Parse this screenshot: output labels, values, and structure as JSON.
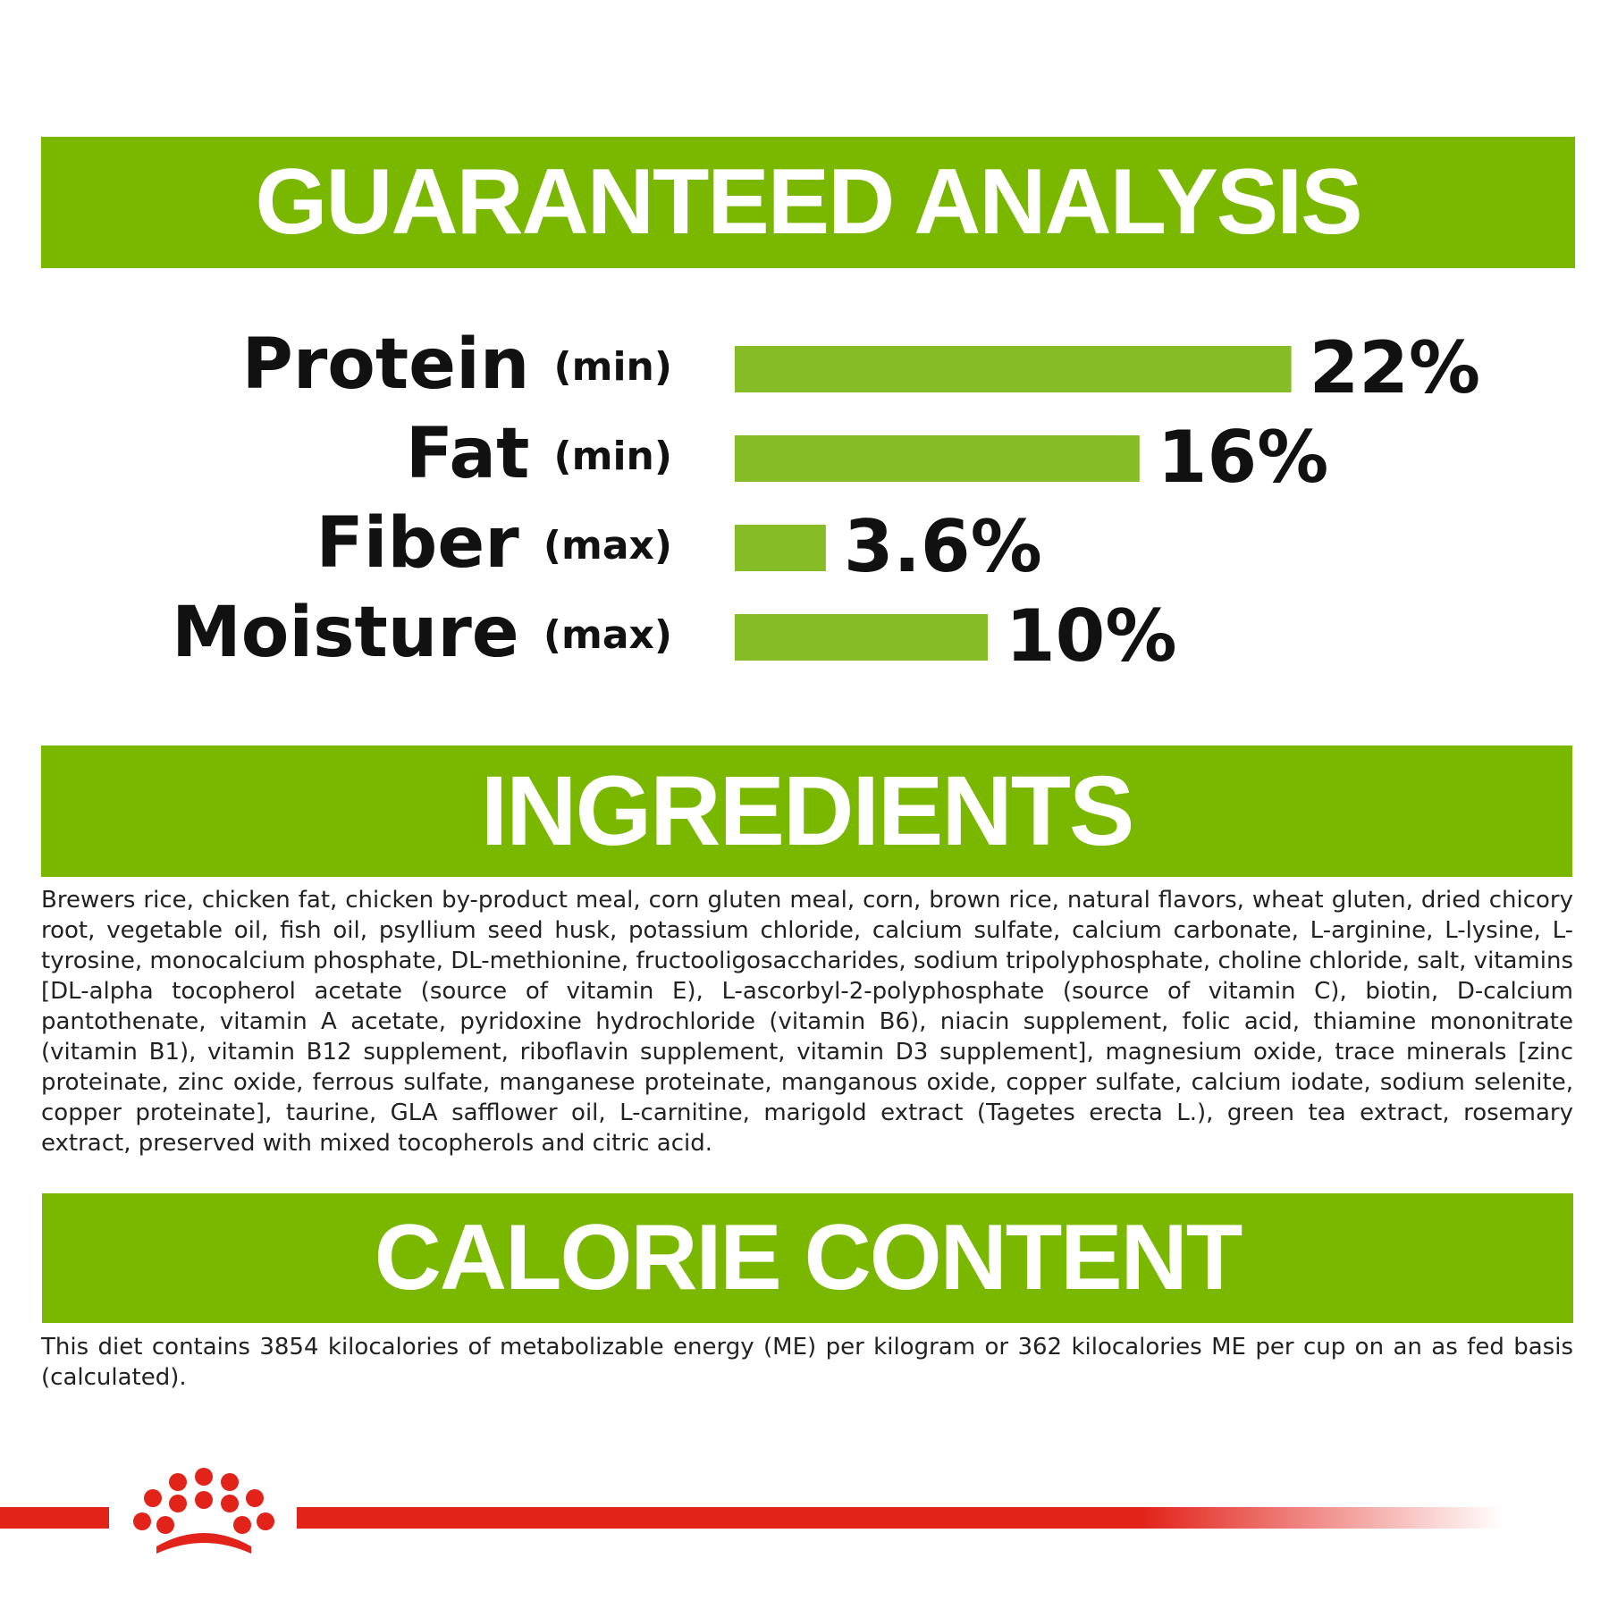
{
  "sections": {
    "analysis": {
      "title": "GUARANTEED ANALYSIS"
    },
    "ingredients": {
      "title": "INGREDIENTS",
      "text": "Brewers rice, chicken fat, chicken by-product meal, corn gluten meal, corn, brown rice, natural flavors, wheat gluten, dried chicory root, vegetable oil, fish oil, psyllium seed husk, potassium chloride, calcium sulfate, calcium carbonate, L-arginine, L-lysine, L-tyrosine, monocalcium phosphate, DL-methionine, fructooligosaccharides, sodium tripolyphosphate, choline chloride, salt, vitamins [DL-alpha tocopherol acetate (source of vitamin E), L-ascorbyl-2-polyphosphate (source of vitamin C), biotin, D-calcium pantothenate, vitamin A acetate, pyridoxine hydrochloride (vitamin B6), niacin supplement, folic acid, thiamine mononitrate (vitamin B1), vitamin B12 supplement, riboflavin supplement, vitamin D3 supplement], magnesium oxide, trace minerals [zinc proteinate, zinc oxide, ferrous sulfate, manganese proteinate, manganous oxide, copper sulfate, calcium iodate, sodium selenite, copper proteinate], taurine, GLA safflower oil, L-carnitine, marigold extract (Tagetes erecta L.), green tea extract, rosemary extract, preserved with mixed tocopherols and citric acid."
    },
    "calorie": {
      "title": "CALORIE CONTENT",
      "text": "This diet contains 3854 kilocalories of metabolizable energy (ME) per kilogram or 362 kilocalories ME per cup on an as fed basis (calculated)."
    }
  },
  "chart_data": {
    "type": "hbar",
    "categories": [
      "Protein",
      "Fat",
      "Fiber",
      "Moisture"
    ],
    "qualifiers": [
      "(min)",
      "(min)",
      "(max)",
      "(max)"
    ],
    "values": [
      22,
      16,
      3.6,
      10
    ],
    "value_labels": [
      "22%",
      "16%",
      "3.6%",
      "10%"
    ],
    "color": "#86bc25"
  }
}
